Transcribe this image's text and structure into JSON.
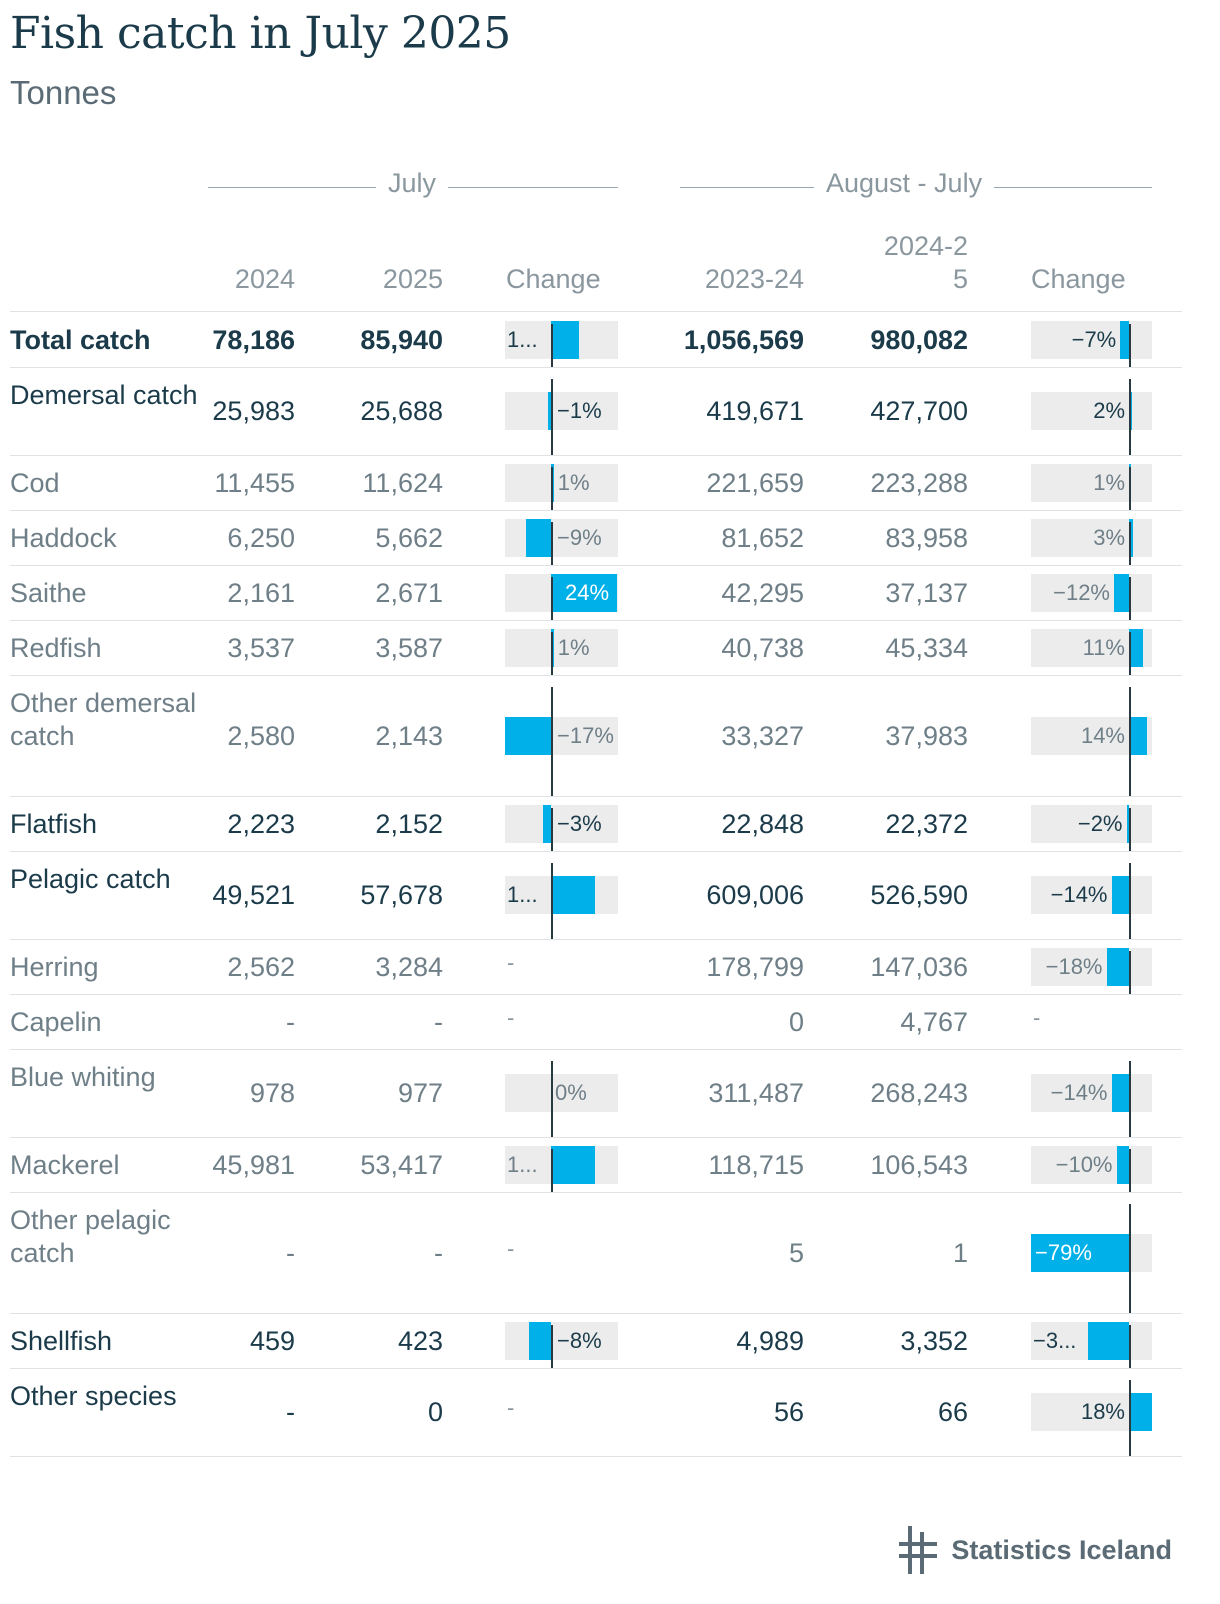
{
  "title": "Fish catch in July 2025",
  "subtitle": "Tonnes",
  "groups": {
    "july": "July",
    "augjul": "August - July"
  },
  "columns": [
    "2024",
    "2025",
    "Change",
    "2023-24",
    "2024-25",
    "Change"
  ],
  "logo_text": "Statistics Iceland",
  "colors": {
    "bar": "#00b0e8",
    "bar_bg": "#ececec",
    "axis": "#2a3a42"
  },
  "chart_data": {
    "type": "table",
    "rows": [
      {
        "label": "Total catch",
        "style": "bold",
        "c2024": "78,186",
        "c2025": "85,940",
        "july_change": 10,
        "july_change_label": "1...",
        "c2324": "1,056,569",
        "c2425": "980,082",
        "aj_change": -7,
        "aj_change_label": "−7%"
      },
      {
        "label": "Demersal catch",
        "style": "main",
        "c2024": "25,983",
        "c2025": "25,688",
        "july_change": -1,
        "july_change_label": "−1%",
        "c2324": "419,671",
        "c2425": "427,700",
        "aj_change": 2,
        "aj_change_label": "2%"
      },
      {
        "label": "Cod",
        "style": "sub",
        "c2024": "11,455",
        "c2025": "11,624",
        "july_change": 1,
        "july_change_label": "1%",
        "c2324": "221,659",
        "c2425": "223,288",
        "aj_change": 1,
        "aj_change_label": "1%"
      },
      {
        "label": "Haddock",
        "style": "sub",
        "c2024": "6,250",
        "c2025": "5,662",
        "july_change": -9,
        "july_change_label": "−9%",
        "c2324": "81,652",
        "c2425": "83,958",
        "aj_change": 3,
        "aj_change_label": "3%"
      },
      {
        "label": "Saithe",
        "style": "sub",
        "c2024": "2,161",
        "c2025": "2,671",
        "july_change": 24,
        "july_change_label": "24%",
        "c2324": "42,295",
        "c2425": "37,137",
        "aj_change": -12,
        "aj_change_label": "−12%"
      },
      {
        "label": "Redfish",
        "style": "sub",
        "c2024": "3,537",
        "c2025": "3,587",
        "july_change": 1,
        "july_change_label": "1%",
        "c2324": "40,738",
        "c2425": "45,334",
        "aj_change": 11,
        "aj_change_label": "11%"
      },
      {
        "label": "Other demersal catch",
        "style": "sub",
        "c2024": "2,580",
        "c2025": "2,143",
        "july_change": -17,
        "july_change_label": "−17%",
        "c2324": "33,327",
        "c2425": "37,983",
        "aj_change": 14,
        "aj_change_label": "14%"
      },
      {
        "label": "Flatfish",
        "style": "main",
        "c2024": "2,223",
        "c2025": "2,152",
        "july_change": -3,
        "july_change_label": "−3%",
        "c2324": "22,848",
        "c2425": "22,372",
        "aj_change": -2,
        "aj_change_label": "−2%"
      },
      {
        "label": "Pelagic catch",
        "style": "main",
        "c2024": "49,521",
        "c2025": "57,678",
        "july_change": 16,
        "july_change_label": "1...",
        "c2324": "609,006",
        "c2425": "526,590",
        "aj_change": -14,
        "aj_change_label": "−14%"
      },
      {
        "label": "Herring",
        "style": "sub",
        "c2024": "2,562",
        "c2025": "3,284",
        "july_change": null,
        "july_change_label": "-",
        "c2324": "178,799",
        "c2425": "147,036",
        "aj_change": -18,
        "aj_change_label": "−18%"
      },
      {
        "label": "Capelin",
        "style": "sub",
        "c2024": "-",
        "c2025": "-",
        "july_change": null,
        "july_change_label": "-",
        "c2324": "0",
        "c2425": "4,767",
        "aj_change": null,
        "aj_change_label": "-"
      },
      {
        "label": "Blue whiting",
        "style": "sub",
        "c2024": "978",
        "c2025": "977",
        "july_change": 0,
        "july_change_label": "0%",
        "c2324": "311,487",
        "c2425": "268,243",
        "aj_change": -14,
        "aj_change_label": "−14%"
      },
      {
        "label": "Mackerel",
        "style": "sub",
        "c2024": "45,981",
        "c2025": "53,417",
        "july_change": 16,
        "july_change_label": "1...",
        "c2324": "118,715",
        "c2425": "106,543",
        "aj_change": -10,
        "aj_change_label": "−10%"
      },
      {
        "label": "Other pelagic catch",
        "style": "sub",
        "c2024": "-",
        "c2025": "-",
        "july_change": null,
        "july_change_label": "-",
        "c2324": "5",
        "c2425": "1",
        "aj_change": -79,
        "aj_change_label": "−79%"
      },
      {
        "label": "Shellfish",
        "style": "main",
        "c2024": "459",
        "c2025": "423",
        "july_change": -8,
        "july_change_label": "−8%",
        "c2324": "4,989",
        "c2425": "3,352",
        "aj_change": -33,
        "aj_change_label": "−3..."
      },
      {
        "label": "Other species",
        "style": "main",
        "c2024": "-",
        "c2025": "0",
        "july_change": null,
        "july_change_label": "-",
        "c2324": "56",
        "c2425": "66",
        "aj_change": 18,
        "aj_change_label": "18%"
      }
    ]
  }
}
